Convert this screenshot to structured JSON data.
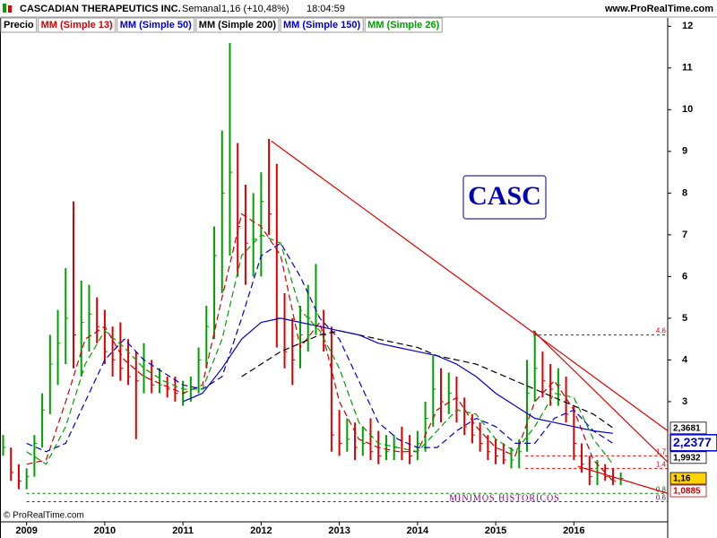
{
  "chart_data": {
    "type": "ohlc",
    "title": "CASCADIAN THERAPEUTICS INC.",
    "period": "Semanal",
    "quote": "1,16 (+10,48%)",
    "time": "18:04:59",
    "source": "www.ProRealTime.com",
    "copyright": "© ProRealTime.com",
    "annotation": "CASC",
    "note": "MINIMOS HISTORICOS",
    "xlim": [
      2008.66,
      2017.2
    ],
    "xticks": [
      2009,
      2010,
      2011,
      2012,
      2013,
      2014,
      2015,
      2016
    ],
    "ylim": [
      0.44,
      12.2
    ],
    "yticks": [
      3,
      4,
      5,
      6,
      7,
      8,
      9,
      10,
      11,
      12
    ],
    "price": {
      "name": "Precio",
      "up_color": "#00a000",
      "down_color": "#e00000",
      "x": [
        2008.7,
        2008.8,
        2008.9,
        2009.0,
        2009.1,
        2009.2,
        2009.3,
        2009.4,
        2009.5,
        2009.6,
        2009.7,
        2009.8,
        2009.9,
        2010.0,
        2010.1,
        2010.2,
        2010.3,
        2010.4,
        2010.5,
        2010.6,
        2010.7,
        2010.8,
        2010.9,
        2011.0,
        2011.1,
        2011.2,
        2011.3,
        2011.4,
        2011.5,
        2011.6,
        2011.7,
        2011.8,
        2011.9,
        2012.0,
        2012.1,
        2012.2,
        2012.3,
        2012.4,
        2012.5,
        2012.6,
        2012.7,
        2012.8,
        2012.9,
        2013.0,
        2013.1,
        2013.2,
        2013.3,
        2013.4,
        2013.5,
        2013.6,
        2013.7,
        2013.8,
        2013.9,
        2014.0,
        2014.1,
        2014.2,
        2014.3,
        2014.4,
        2014.5,
        2014.6,
        2014.7,
        2014.8,
        2014.9,
        2015.0,
        2015.1,
        2015.2,
        2015.3,
        2015.4,
        2015.5,
        2015.6,
        2015.7,
        2015.8,
        2015.9,
        2016.0,
        2016.1,
        2016.2,
        2016.3,
        2016.4,
        2016.5,
        2016.6
      ],
      "high": [
        2.2,
        1.9,
        1.5,
        1.4,
        2.2,
        3.2,
        4.6,
        5.2,
        6.2,
        7.8,
        5.9,
        5.8,
        5.5,
        5.2,
        4.8,
        4.9,
        4.5,
        4.2,
        4.4,
        4.0,
        3.8,
        3.6,
        3.6,
        3.5,
        3.6,
        4.3,
        5.3,
        7.2,
        9.5,
        11.6,
        9.2,
        8.2,
        8.0,
        8.5,
        9.3,
        8.7,
        5.6,
        5.0,
        5.3,
        5.8,
        6.3,
        5.2,
        4.8,
        2.8,
        2.6,
        2.5,
        2.4,
        2.6,
        2.3,
        2.2,
        2.2,
        2.4,
        2.2,
        2.3,
        3.0,
        4.1,
        3.8,
        3.7,
        3.6,
        3.1,
        2.7,
        2.5,
        2.2,
        2.1,
        2.0,
        1.9,
        2.1,
        4.0,
        4.7,
        4.2,
        3.9,
        3.8,
        3.6,
        2.9,
        2.0,
        1.7,
        1.6,
        1.5,
        1.4,
        1.3
      ],
      "low": [
        1.7,
        1.1,
        0.9,
        0.9,
        1.2,
        1.9,
        2.7,
        3.4,
        3.9,
        3.8,
        3.6,
        4.2,
        4.4,
        3.9,
        3.6,
        3.5,
        3.4,
        2.1,
        3.2,
        3.2,
        3.2,
        3.1,
        3.0,
        2.9,
        3.0,
        3.2,
        3.8,
        4.5,
        5.6,
        6.5,
        6.0,
        5.8,
        6.0,
        6.0,
        7.0,
        4.3,
        3.8,
        3.4,
        3.8,
        4.2,
        4.6,
        4.2,
        1.8,
        1.7,
        1.8,
        1.6,
        1.7,
        1.6,
        1.5,
        1.6,
        1.6,
        1.6,
        1.5,
        1.6,
        1.8,
        2.4,
        2.5,
        2.7,
        2.5,
        2.2,
        2.0,
        1.8,
        1.6,
        1.5,
        1.5,
        1.4,
        1.4,
        1.8,
        3.0,
        3.1,
        2.9,
        2.9,
        2.5,
        1.6,
        1.3,
        1.0,
        1.0,
        1.1,
        1.0,
        1.0
      ],
      "close": [
        1.9,
        1.3,
        1.1,
        1.2,
        2.0,
        2.8,
        3.9,
        4.4,
        5.0,
        4.6,
        4.9,
        5.1,
        4.8,
        4.2,
        4.0,
        3.8,
        3.6,
        3.5,
        3.6,
        3.4,
        3.4,
        3.3,
        3.2,
        3.2,
        3.3,
        4.0,
        4.8,
        6.5,
        8.0,
        8.5,
        7.2,
        6.8,
        6.9,
        7.8,
        7.5,
        5.0,
        4.2,
        4.0,
        4.6,
        5.0,
        5.1,
        4.6,
        2.2,
        2.0,
        2.1,
        1.9,
        2.0,
        1.8,
        1.7,
        1.8,
        1.9,
        1.8,
        1.7,
        2.0,
        2.6,
        3.3,
        3.0,
        3.2,
        2.8,
        2.4,
        2.2,
        2.0,
        1.8,
        1.7,
        1.6,
        1.6,
        1.8,
        3.2,
        3.8,
        3.5,
        3.3,
        3.4,
        2.7,
        2.0,
        1.5,
        1.2,
        1.3,
        1.2,
        1.1,
        1.16
      ]
    },
    "x": [
      2009,
      2009.25,
      2009.5,
      2009.75,
      2010,
      2010.25,
      2010.5,
      2010.75,
      2011,
      2011.25,
      2011.5,
      2011.75,
      2012,
      2012.25,
      2012.5,
      2012.75,
      2013,
      2013.25,
      2013.5,
      2013.75,
      2014,
      2014.25,
      2014.5,
      2014.75,
      2015,
      2015.25,
      2015.5,
      2015.75,
      2016,
      2016.25,
      2016.5
    ],
    "series": [
      {
        "name": "MM (Simple 13)",
        "color": "#d00000",
        "dashed": true,
        "values": [
          1.5,
          1.6,
          3.0,
          4.5,
          4.8,
          4.0,
          3.6,
          3.4,
          3.2,
          3.4,
          5.5,
          7.5,
          7.2,
          6.5,
          4.3,
          4.9,
          3.0,
          2.1,
          1.9,
          1.8,
          1.8,
          2.8,
          3.1,
          2.4,
          1.9,
          1.7,
          3.0,
          3.5,
          2.8,
          1.6,
          1.1
        ]
      },
      {
        "name": "MM (Simple 50)",
        "color": "#0000cc",
        "dashed": true,
        "values": [
          2.0,
          1.8,
          2.0,
          3.0,
          4.0,
          4.5,
          4.0,
          3.7,
          3.4,
          3.3,
          3.6,
          5.0,
          6.5,
          6.8,
          6.0,
          5.0,
          4.5,
          3.5,
          2.5,
          2.1,
          1.9,
          1.9,
          2.3,
          2.6,
          2.4,
          2.0,
          2.0,
          2.6,
          2.8,
          2.3,
          2.0
        ]
      },
      {
        "name": "MM (Simple 200)",
        "color": "#000000",
        "dashed": true,
        "values": [
          null,
          null,
          null,
          null,
          null,
          null,
          null,
          null,
          null,
          null,
          null,
          3.6,
          3.9,
          4.2,
          4.4,
          4.6,
          4.7,
          4.6,
          4.5,
          4.4,
          4.3,
          4.1,
          4.0,
          3.9,
          3.7,
          3.5,
          3.3,
          3.1,
          2.9,
          2.7,
          2.37
        ]
      },
      {
        "name": "MM (Simple 150)",
        "color": "#0000cc",
        "dashed": false,
        "values": [
          null,
          null,
          null,
          null,
          null,
          null,
          null,
          null,
          3.0,
          3.2,
          3.8,
          4.5,
          4.9,
          5.0,
          4.9,
          4.8,
          4.7,
          4.6,
          4.4,
          4.3,
          4.2,
          4.1,
          3.9,
          3.6,
          3.2,
          2.9,
          2.6,
          2.5,
          2.4,
          2.3,
          2.24
        ]
      },
      {
        "name": "MM (Simple 26)",
        "color": "#00a000",
        "dashed": true,
        "values": [
          1.8,
          1.5,
          2.4,
          3.9,
          4.7,
          4.3,
          3.8,
          3.5,
          3.3,
          3.3,
          4.5,
          6.5,
          7.0,
          6.8,
          5.2,
          4.7,
          3.8,
          2.5,
          2.0,
          1.9,
          1.8,
          2.3,
          2.8,
          2.7,
          2.1,
          1.8,
          2.4,
          3.2,
          3.1,
          2.1,
          1.5
        ]
      }
    ],
    "trendlines": [
      {
        "color": "#e00000",
        "x": [
          2012.13,
          2017.2
        ],
        "y": [
          9.25,
          2.3
        ]
      },
      {
        "color": "#e00000",
        "x": [
          2015.48,
          2017.2
        ],
        "y": [
          4.7,
          1.55
        ]
      },
      {
        "color": "#e00000",
        "x": [
          2016.05,
          2017.2
        ],
        "y": [
          1.45,
          0.8
        ]
      }
    ],
    "levels": [
      {
        "value": 4.6,
        "from": 2015.48,
        "color": "#e00000"
      },
      {
        "value": 1.7,
        "from": 2015.38,
        "color": "#e00000"
      },
      {
        "value": 1.4,
        "from": 2015.38,
        "color": "#e00000"
      },
      {
        "value": 0.8,
        "from": 2009.0,
        "color": "#008000"
      },
      {
        "value": 0.6,
        "from": 2009.0,
        "color": "#800080"
      }
    ],
    "markers": [
      {
        "value": 2.3681,
        "label": "2,3681",
        "color": "#000000",
        "background": "#ffffff"
      },
      {
        "value": 2.2377,
        "label": "2,2377",
        "color": "#0000cc",
        "background": "#ffffff",
        "emphasis": true
      },
      {
        "value": 1.9932,
        "label": "1,9932",
        "color": "#000000",
        "background": "#ffffff"
      },
      {
        "value": 1.16,
        "label": "1,16",
        "color": "#000000",
        "background": "#ffd400"
      },
      {
        "value": 1.0885,
        "label": "1,0885",
        "color": "#d00000",
        "background": "#ffffff"
      }
    ]
  }
}
